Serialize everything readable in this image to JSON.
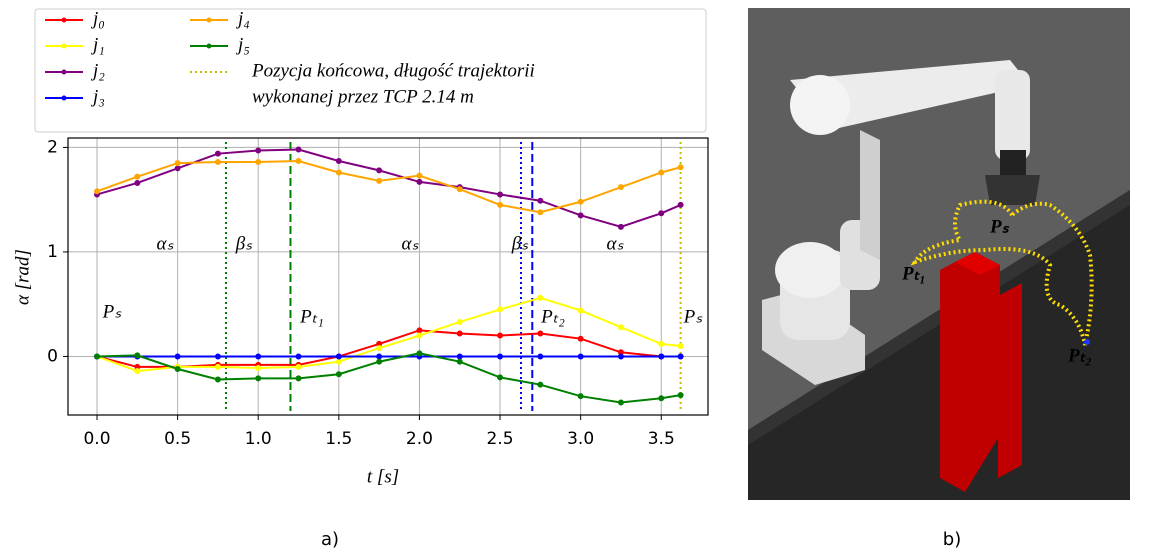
{
  "chart_data": {
    "type": "line",
    "xlabel": "t [s]",
    "ylabel": "α [rad]",
    "x": [
      0,
      0.25,
      0.5,
      0.75,
      1.0,
      1.25,
      1.5,
      1.75,
      2.0,
      2.25,
      2.5,
      2.75,
      3.0,
      3.25,
      3.5,
      3.62
    ],
    "series": [
      {
        "name": "j₀",
        "color": "#ff0000",
        "values": [
          0.0,
          -0.1,
          -0.1,
          -0.08,
          -0.08,
          -0.08,
          0.0,
          0.12,
          0.25,
          0.22,
          0.2,
          0.22,
          0.17,
          0.04,
          0.0,
          0.0
        ]
      },
      {
        "name": "j₁",
        "color": "#ffff00",
        "values": [
          0.0,
          -0.14,
          -0.1,
          -0.1,
          -0.11,
          -0.1,
          -0.05,
          0.08,
          0.2,
          0.33,
          0.45,
          0.56,
          0.44,
          0.28,
          0.12,
          0.1
        ]
      },
      {
        "name": "j₂",
        "color": "#800080",
        "values": [
          1.55,
          1.66,
          1.8,
          1.94,
          1.97,
          1.98,
          1.87,
          1.78,
          1.67,
          1.62,
          1.55,
          1.49,
          1.35,
          1.24,
          1.37,
          1.45
        ]
      },
      {
        "name": "j₃",
        "color": "#0000ff",
        "values": [
          0,
          0,
          0,
          0,
          0,
          0,
          0,
          0,
          0,
          0,
          0,
          0,
          0,
          0,
          0,
          0
        ]
      },
      {
        "name": "j₄",
        "color": "#ffa500",
        "values": [
          1.58,
          1.72,
          1.85,
          1.86,
          1.86,
          1.87,
          1.76,
          1.68,
          1.73,
          1.6,
          1.45,
          1.38,
          1.48,
          1.62,
          1.76,
          1.81
        ]
      },
      {
        "name": "j₅",
        "color": "#008000",
        "values": [
          0.0,
          0.01,
          -0.12,
          -0.22,
          -0.21,
          -0.21,
          -0.17,
          -0.05,
          0.03,
          -0.05,
          -0.2,
          -0.27,
          -0.38,
          -0.44,
          -0.4,
          -0.37
        ]
      }
    ],
    "vlines": [
      {
        "x": 0.8,
        "color": "#008000",
        "style": "dotted"
      },
      {
        "x": 1.2,
        "color": "#008000",
        "style": "dashed"
      },
      {
        "x": 2.63,
        "color": "#0000ff",
        "style": "dotted"
      },
      {
        "x": 2.7,
        "color": "#0000ff",
        "style": "dashed"
      },
      {
        "x": 3.62,
        "color": "#bfbf00",
        "style": "dotted",
        "name": [
          "Pozycja końcowa, długość trajektorii",
          "wykonanej przez TCP 2.14 m"
        ]
      }
    ],
    "annotations": [
      "αₛ",
      "βₛ",
      "αₛ",
      "βₛ",
      "αₛ",
      "Pₛ",
      "Pₜ₁",
      "Pₜ₂",
      "Pₛ"
    ],
    "xlim": [
      -0.18,
      3.79
    ],
    "ylim": [
      -0.56,
      2.09
    ],
    "xticks": [
      {
        "value": 0,
        "label": "0.0"
      },
      {
        "value": 0.5,
        "label": "0.5"
      },
      {
        "value": 1,
        "label": "1.0"
      },
      {
        "value": 1.5,
        "label": "1.5"
      },
      {
        "value": 2,
        "label": "2.0"
      },
      {
        "value": 2.5,
        "label": "2.5"
      },
      {
        "value": 3,
        "label": "3.0"
      },
      {
        "value": 3.5,
        "label": "3.5"
      }
    ],
    "yticks": [
      0,
      1,
      2
    ],
    "grid": true
  },
  "panel_b": {
    "labels": [
      "Pₛ",
      "Pₜ₁",
      "Pₜ₂"
    ]
  },
  "captions": [
    "a)",
    "b)"
  ]
}
